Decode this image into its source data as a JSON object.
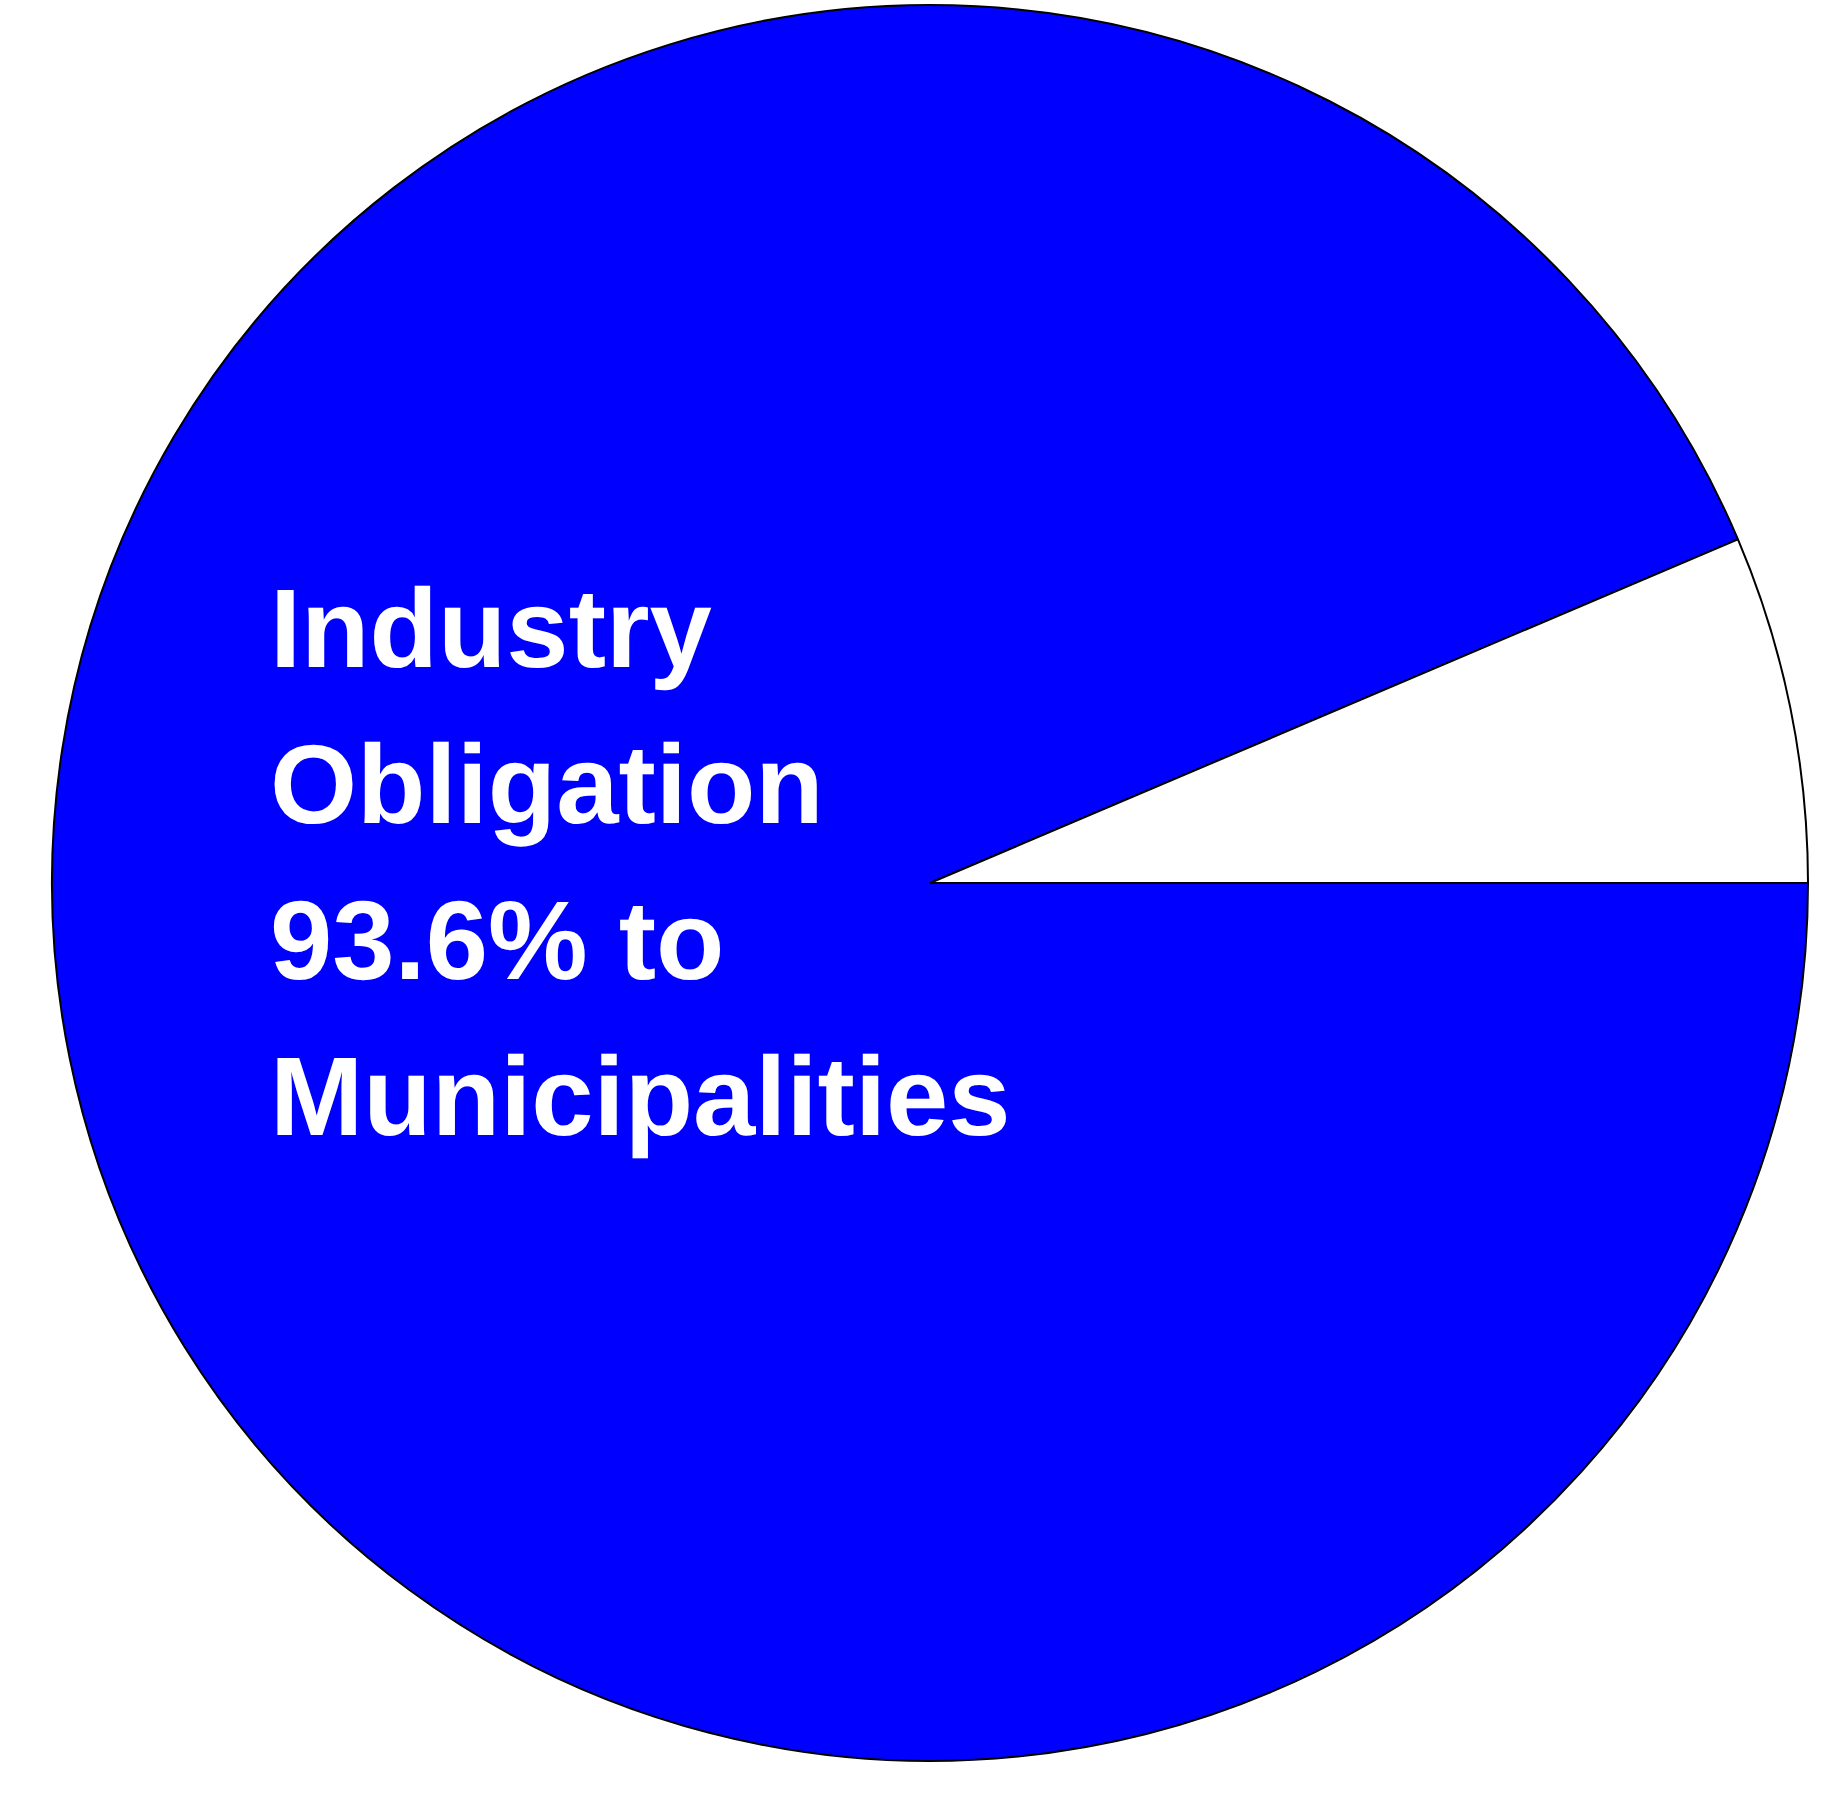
{
  "chart_data": {
    "type": "pie",
    "categories": [
      "Industry Obligation 93.6% to Municipalities",
      null
    ],
    "values": [
      93.6,
      6.4
    ],
    "colors": [
      "#0000ff",
      "#ffffff"
    ],
    "legend": false
  }
}
